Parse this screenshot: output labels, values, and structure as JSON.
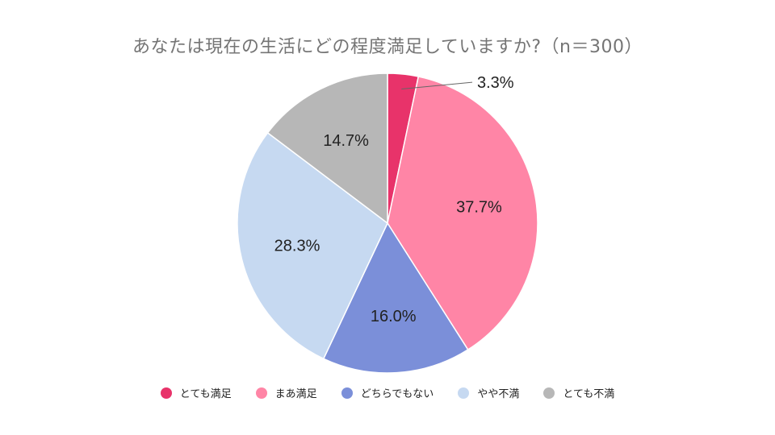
{
  "chart_data": {
    "type": "pie",
    "title": "あなたは現在の生活にどの程度満足していますか?（n＝300）",
    "categories": [
      "とても満足",
      "まあ満足",
      "どちらでもない",
      "やや不満",
      "とても不満"
    ],
    "values": [
      3.3,
      37.7,
      16.0,
      28.3,
      14.7
    ],
    "labels": [
      "3.3%",
      "37.7%",
      "16.0%",
      "28.3%",
      "14.7%"
    ],
    "colors": [
      "#e8336a",
      "#ff85a6",
      "#7b8fd9",
      "#c6d9f1",
      "#b7b7b7"
    ],
    "legend": "bottom"
  }
}
